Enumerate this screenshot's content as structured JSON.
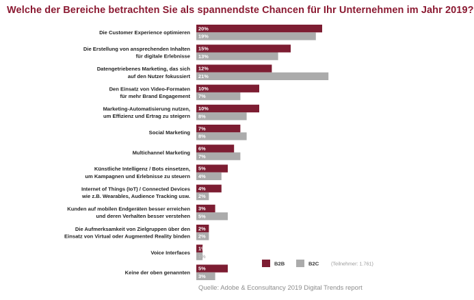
{
  "title": "Welche der Bereiche betrachten Sie als spannendste Chancen für Ihr Unternehmen im Jahr 2019?",
  "source": "Quelle: Adobe & Econsultancy 2019 Digital Trends report",
  "legend": {
    "b2b": "B2B",
    "b2c": "B2C",
    "note": "(Teilnehmer: 1.761)"
  },
  "colors": {
    "b2b": "#7d1d32",
    "b2c": "#ababab"
  },
  "chart_data": {
    "type": "bar",
    "orientation": "horizontal",
    "title": "Welche der Bereiche betrachten Sie als spannendste Chancen für Ihr Unternehmen im Jahr 2019?",
    "unit": "%",
    "categories": [
      [
        "Die Customer Experience optimieren"
      ],
      [
        "Die Erstellung von ansprechenden Inhalten",
        "für digitale Erlebnisse"
      ],
      [
        "Datengetriebenes Marketing, das sich",
        "auf den Nutzer fokussiert"
      ],
      [
        "Den Einsatz von Video-Formaten",
        "für mehr Brand Engagement"
      ],
      [
        "Marketing-Automatisierung nutzen,",
        "um Effizienz und Ertrag zu steigern"
      ],
      [
        "Social Marketing"
      ],
      [
        "Multichannel Marketing"
      ],
      [
        "Künstliche Intelligenz / Bots einsetzen,",
        "um Kampagnen und Erlebnisse zu steuern"
      ],
      [
        "Internet of Things (IoT) / Connected Devices",
        "wie z.B. Wearables, Audience Tracking usw."
      ],
      [
        "Kunden auf mobilen Endgeräten besser erreichen",
        "und deren Verhalten besser verstehen"
      ],
      [
        "Die Aufmerksamkeit von Zielgruppen über den",
        "Einsatz von Virtual oder Augmented Reality binden"
      ],
      [
        "Voice Interfaces"
      ],
      [
        "Keine der oben genannten"
      ]
    ],
    "series": [
      {
        "name": "B2B",
        "values": [
          20,
          15,
          12,
          10,
          10,
          7,
          6,
          5,
          4,
          3,
          2,
          1,
          5
        ]
      },
      {
        "name": "B2C",
        "values": [
          19,
          13,
          21,
          7,
          8,
          8,
          7,
          4,
          2,
          5,
          2,
          1,
          3
        ]
      }
    ],
    "grid": false,
    "legend_position": "bottom-right"
  }
}
